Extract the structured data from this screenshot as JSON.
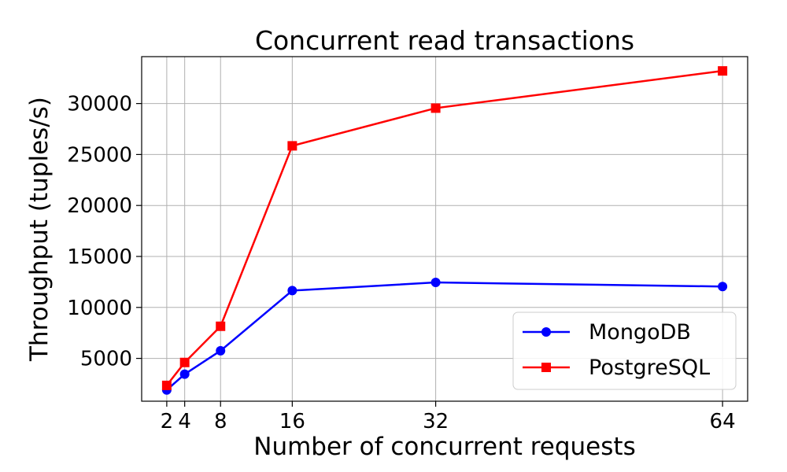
{
  "chart_data": {
    "type": "line",
    "title": "Concurrent read transactions",
    "xlabel": "Number of concurrent requests",
    "ylabel": "Throughput (tuples/s)",
    "x": [
      2,
      4,
      8,
      16,
      32,
      64
    ],
    "xticks": [
      2,
      4,
      8,
      16,
      32,
      64
    ],
    "yticks": [
      5000,
      10000,
      15000,
      20000,
      25000,
      30000
    ],
    "xlim": [
      -0.8,
      66.8
    ],
    "ylim": [
      800,
      34600
    ],
    "grid": true,
    "legend_position": "lower-right",
    "series": [
      {
        "name": "MongoDB",
        "color": "#0000ff",
        "marker": "circle",
        "values": [
          1900,
          3450,
          5750,
          11650,
          12450,
          12050
        ]
      },
      {
        "name": "PostgreSQL",
        "color": "#ff0000",
        "marker": "square",
        "values": [
          2350,
          4600,
          8150,
          25850,
          29550,
          33200
        ]
      }
    ]
  }
}
